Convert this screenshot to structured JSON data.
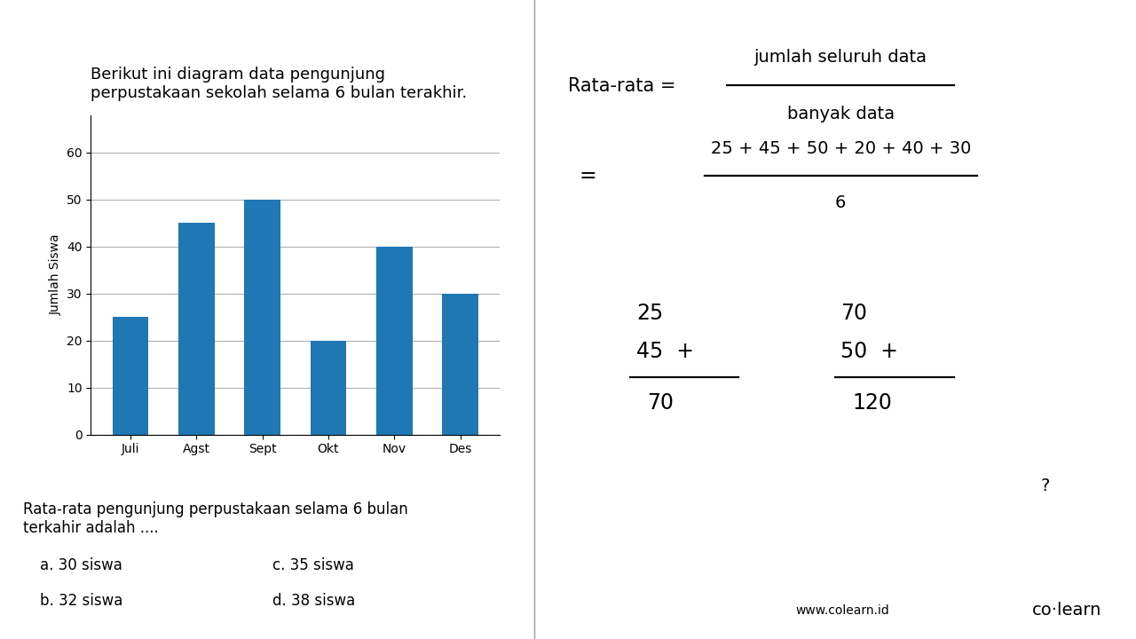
{
  "chart_data": {
    "type": "bar",
    "title": "Berikut ini diagram data pengunjung\nperpustakaan sekolah selama 6 bulan terakhir.",
    "categories": [
      "Juli",
      "Agst",
      "Sept",
      "Okt",
      "Nov",
      "Des"
    ],
    "values": [
      25,
      45,
      50,
      20,
      40,
      30
    ],
    "y_label": "Jumlah Siswa",
    "ylim": [
      0,
      68
    ],
    "yticks": [
      0,
      10,
      20,
      30,
      40,
      50,
      60
    ],
    "grid": true,
    "annotations": [
      "Rata-rata pengunjung perpustakaan selama 6 bulan\nterkahir adalah ....",
      "a. 30 siswa",
      "b. 32 siswa",
      "c. 35 siswa",
      "d. 38 siswa",
      "Rata-rata =",
      "jumlah seluruh data",
      "banyak data",
      "=",
      "25 + 45 + 50 + 20 + 40 + 30",
      "6",
      "25",
      "45  +",
      "70",
      "70",
      "50  +",
      "120",
      "?",
      "co·learn",
      "www.colearn.id"
    ]
  }
}
